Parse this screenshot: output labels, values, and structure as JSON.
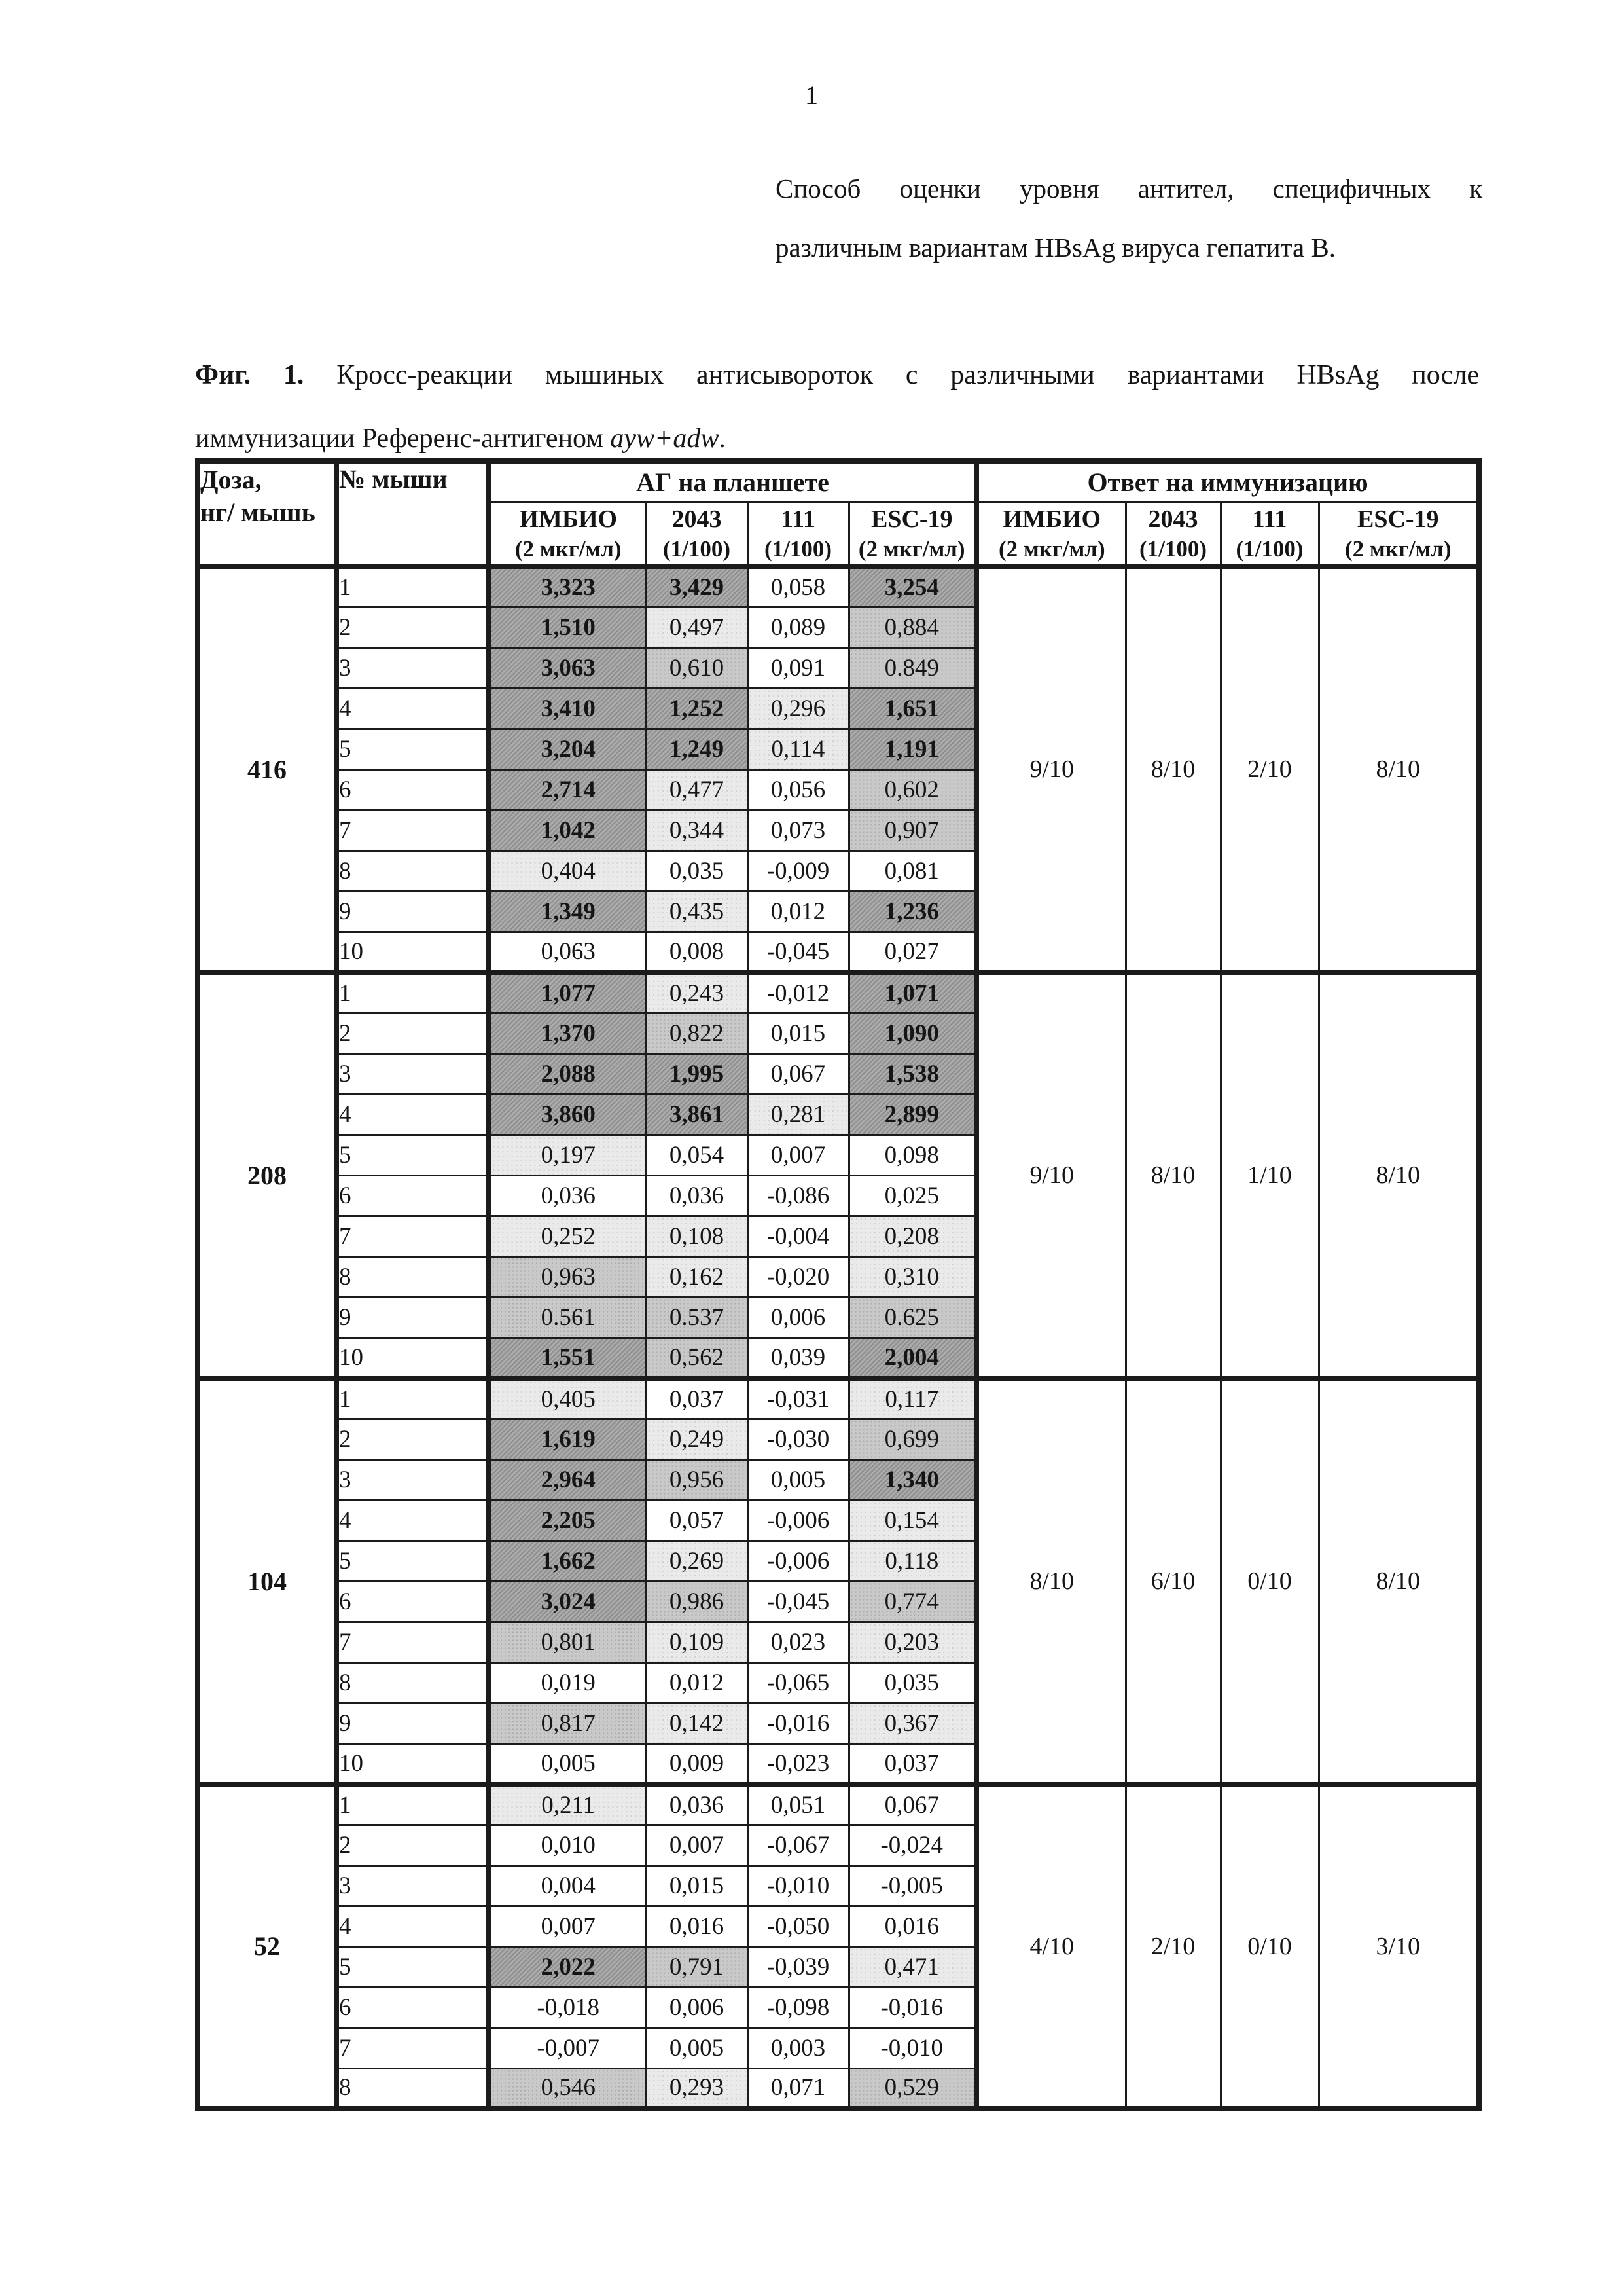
{
  "page_number": "1",
  "title": {
    "line1": "Способ оценки уровня антител, специфичных к",
    "line2": "различным вариантам HBsAg вируса гепатита В."
  },
  "caption": {
    "fig_label": "Фиг. 1.",
    "line1_rest": " Кросс-реакции мышиных антисывороток с различными вариантами HBsAg после",
    "line2_prefix": "иммунизации Референс-антигеном ",
    "line2_italic": "ayw+adw",
    "line2_suffix": "."
  },
  "table": {
    "header": {
      "dose_line1": "Доза,",
      "dose_line2": "нг/ мышь",
      "mouse": "№ мыши",
      "group_left": "АГ на планшете",
      "group_right": "Ответ на иммунизацию",
      "subcols": [
        {
          "name": "ИМБИО",
          "unit": "(2 мкг/мл)"
        },
        {
          "name": "2043",
          "unit": "(1/100)"
        },
        {
          "name": "111",
          "unit": "(1/100)"
        },
        {
          "name": "ESC-19",
          "unit": "(2 мкг/мл)"
        }
      ]
    },
    "groups": [
      {
        "dose": "416",
        "responses": [
          "9/10",
          "8/10",
          "2/10",
          "8/10"
        ],
        "rows": [
          {
            "n": "1",
            "v": [
              "3,323",
              "3,429",
              "0,058",
              "3,254"
            ]
          },
          {
            "n": "2",
            "v": [
              "1,510",
              "0,497",
              "0,089",
              "0,884"
            ]
          },
          {
            "n": "3",
            "v": [
              "3,063",
              "0,610",
              "0,091",
              "0.849"
            ]
          },
          {
            "n": "4",
            "v": [
              "3,410",
              "1,252",
              "0,296",
              "1,651"
            ]
          },
          {
            "n": "5",
            "v": [
              "3,204",
              "1,249",
              "0,114",
              "1,191"
            ]
          },
          {
            "n": "6",
            "v": [
              "2,714",
              "0,477",
              "0,056",
              "0,602"
            ]
          },
          {
            "n": "7",
            "v": [
              "1,042",
              "0,344",
              "0,073",
              "0,907"
            ]
          },
          {
            "n": "8",
            "v": [
              "0,404",
              "0,035",
              "-0,009",
              "0,081"
            ]
          },
          {
            "n": "9",
            "v": [
              "1,349",
              "0,435",
              "0,012",
              "1,236"
            ]
          },
          {
            "n": "10",
            "v": [
              "0,063",
              "0,008",
              "-0,045",
              "0,027"
            ]
          }
        ]
      },
      {
        "dose": "208",
        "responses": [
          "9/10",
          "8/10",
          "1/10",
          "8/10"
        ],
        "rows": [
          {
            "n": "1",
            "v": [
              "1,077",
              "0,243",
              "-0,012",
              "1,071"
            ]
          },
          {
            "n": "2",
            "v": [
              "1,370",
              "0,822",
              "0,015",
              "1,090"
            ]
          },
          {
            "n": "3",
            "v": [
              "2,088",
              "1,995",
              "0,067",
              "1,538"
            ]
          },
          {
            "n": "4",
            "v": [
              "3,860",
              "3,861",
              "0,281",
              "2,899"
            ]
          },
          {
            "n": "5",
            "v": [
              "0,197",
              "0,054",
              "0,007",
              "0,098"
            ]
          },
          {
            "n": "6",
            "v": [
              "0,036",
              "0,036",
              "-0,086",
              "0,025"
            ]
          },
          {
            "n": "7",
            "v": [
              "0,252",
              "0,108",
              "-0,004",
              "0,208"
            ]
          },
          {
            "n": "8",
            "v": [
              "0,963",
              "0,162",
              "-0,020",
              "0,310"
            ]
          },
          {
            "n": "9",
            "v": [
              "0.561",
              "0.537",
              "0,006",
              "0.625"
            ]
          },
          {
            "n": "10",
            "v": [
              "1,551",
              "0,562",
              "0,039",
              "2,004"
            ]
          }
        ]
      },
      {
        "dose": "104",
        "responses": [
          "8/10",
          "6/10",
          "0/10",
          "8/10"
        ],
        "rows": [
          {
            "n": "1",
            "v": [
              "0,405",
              "0,037",
              "-0,031",
              "0,117"
            ]
          },
          {
            "n": "2",
            "v": [
              "1,619",
              "0,249",
              "-0,030",
              "0,699"
            ]
          },
          {
            "n": "3",
            "v": [
              "2,964",
              "0,956",
              "0,005",
              "1,340"
            ]
          },
          {
            "n": "4",
            "v": [
              "2,205",
              "0,057",
              "-0,006",
              "0,154"
            ]
          },
          {
            "n": "5",
            "v": [
              "1,662",
              "0,269",
              "-0,006",
              "0,118"
            ]
          },
          {
            "n": "6",
            "v": [
              "3,024",
              "0,986",
              "-0,045",
              "0,774"
            ]
          },
          {
            "n": "7",
            "v": [
              "0,801",
              "0,109",
              "0,023",
              "0,203"
            ]
          },
          {
            "n": "8",
            "v": [
              "0,019",
              "0,012",
              "-0,065",
              "0,035"
            ]
          },
          {
            "n": "9",
            "v": [
              "0,817",
              "0,142",
              "-0,016",
              "0,367"
            ]
          },
          {
            "n": "10",
            "v": [
              "0,005",
              "0,009",
              "-0,023",
              "0,037"
            ]
          }
        ]
      },
      {
        "dose": "52",
        "responses": [
          "4/10",
          "2/10",
          "0/10",
          "3/10"
        ],
        "rows": [
          {
            "n": "1",
            "v": [
              "0,211",
              "0,036",
              "0,051",
              "0,067"
            ]
          },
          {
            "n": "2",
            "v": [
              "0,010",
              "0,007",
              "-0,067",
              "-0,024"
            ]
          },
          {
            "n": "3",
            "v": [
              "0,004",
              "0,015",
              "-0,010",
              "-0,005"
            ]
          },
          {
            "n": "4",
            "v": [
              "0,007",
              "0,016",
              "-0,050",
              "0,016"
            ]
          },
          {
            "n": "5",
            "v": [
              "2,022",
              "0,791",
              "-0,039",
              "0,471"
            ]
          },
          {
            "n": "6",
            "v": [
              "-0,018",
              "0,006",
              "-0,098",
              "-0,016"
            ]
          },
          {
            "n": "7",
            "v": [
              "-0,007",
              "0,005",
              "0,003",
              "-0,010"
            ]
          },
          {
            "n": "8",
            "v": [
              "0,546",
              "0,293",
              "0,071",
              "0,529"
            ]
          }
        ]
      }
    ]
  }
}
